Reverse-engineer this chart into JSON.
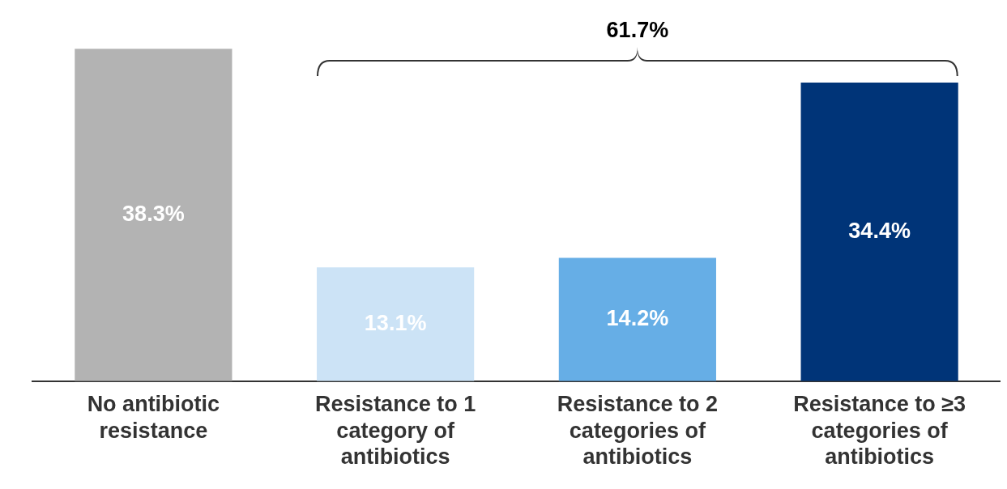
{
  "chart_data": {
    "type": "bar",
    "categories": [
      "No antibiotic resistance",
      "Resistance to 1 category of antibiotics",
      "Resistance to 2 categories of antibiotics",
      "Resistance to ≥3 categories of antibiotics"
    ],
    "values": [
      38.3,
      13.1,
      14.2,
      34.4
    ],
    "colors": [
      "#b3b3b3",
      "#cce3f6",
      "#66aee6",
      "#003478"
    ],
    "value_labels": [
      "38.3%",
      "13.1%",
      "14.2%",
      "34.4%"
    ],
    "annotations": [
      "61.7%"
    ],
    "grid": false,
    "legend": false
  }
}
